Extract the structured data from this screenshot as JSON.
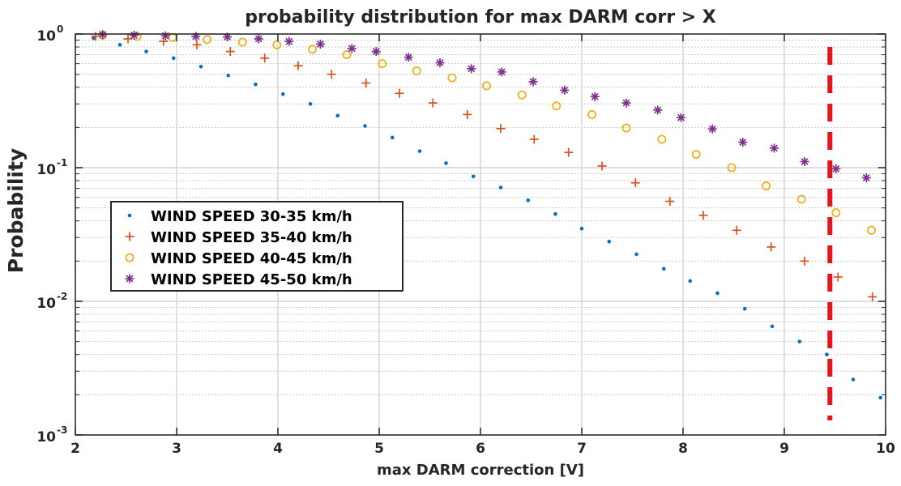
{
  "chart_data": {
    "type": "scatter",
    "title": "probability distribution for max DARM corr > X",
    "xlabel": "max DARM correction [V]",
    "ylabel": "Probability",
    "xlim": [
      2,
      10
    ],
    "ylim": [
      0.001,
      1
    ],
    "yscale": "log",
    "grid": true,
    "legend_position": "middle-left",
    "xticks": [
      "2",
      "3",
      "4",
      "5",
      "6",
      "7",
      "8",
      "9",
      "10"
    ],
    "yticks": [
      {
        "base": "10",
        "exp": "-3",
        "value": 0.001
      },
      {
        "base": "10",
        "exp": "-2",
        "value": 0.01
      },
      {
        "base": "10",
        "exp": "-1",
        "value": 0.1
      },
      {
        "base": "10",
        "exp": "0",
        "value": 1
      }
    ],
    "threshold_line": {
      "x": 9.45,
      "color": "#e8141b",
      "style": "dashed"
    },
    "series": [
      {
        "name": "WIND SPEED 30-35 km/h",
        "marker": "dot",
        "color": "#0072bd",
        "x": [
          2.18,
          2.44,
          2.7,
          2.97,
          3.24,
          3.51,
          3.78,
          4.05,
          4.32,
          4.59,
          4.86,
          5.13,
          5.4,
          5.66,
          5.93,
          6.2,
          6.47,
          6.74,
          7.0,
          7.27,
          7.54,
          7.81,
          8.07,
          8.34,
          8.61,
          8.88,
          9.15,
          9.42,
          9.68,
          9.95
        ],
        "y": [
          0.93,
          0.83,
          0.74,
          0.66,
          0.57,
          0.49,
          0.42,
          0.355,
          0.3,
          0.245,
          0.205,
          0.168,
          0.133,
          0.108,
          0.086,
          0.071,
          0.057,
          0.045,
          0.035,
          0.028,
          0.0225,
          0.0175,
          0.0142,
          0.0115,
          0.0088,
          0.0065,
          0.005,
          0.004,
          0.0026,
          0.0019
        ]
      },
      {
        "name": "WIND SPEED 35-40 km/h",
        "marker": "plus",
        "color": "#d95319",
        "x": [
          2.2,
          2.52,
          2.87,
          3.2,
          3.53,
          3.87,
          4.2,
          4.53,
          4.87,
          5.2,
          5.53,
          5.87,
          6.2,
          6.53,
          6.87,
          7.2,
          7.53,
          7.87,
          8.2,
          8.53,
          8.87,
          9.2,
          9.53,
          9.87
        ],
        "y": [
          0.96,
          0.92,
          0.88,
          0.83,
          0.74,
          0.66,
          0.58,
          0.5,
          0.43,
          0.36,
          0.305,
          0.25,
          0.196,
          0.163,
          0.13,
          0.103,
          0.077,
          0.056,
          0.044,
          0.034,
          0.0255,
          0.02,
          0.0152,
          0.0108
        ]
      },
      {
        "name": "WIND SPEED 40-45 km/h",
        "marker": "circle",
        "color": "#edb120",
        "x": [
          2.27,
          2.61,
          2.96,
          3.3,
          3.65,
          3.99,
          4.34,
          4.68,
          5.03,
          5.37,
          5.72,
          6.06,
          6.41,
          6.75,
          7.1,
          7.44,
          7.79,
          8.13,
          8.48,
          8.82,
          9.17,
          9.51,
          9.86
        ],
        "y": [
          0.98,
          0.96,
          0.94,
          0.91,
          0.87,
          0.83,
          0.77,
          0.7,
          0.6,
          0.53,
          0.47,
          0.41,
          0.35,
          0.29,
          0.25,
          0.198,
          0.163,
          0.126,
          0.1,
          0.073,
          0.058,
          0.046,
          0.034
        ]
      },
      {
        "name": "WIND SPEED 45-50 km/h",
        "marker": "star",
        "color": "#7e2f8e",
        "x": [
          2.27,
          2.58,
          2.89,
          3.19,
          3.5,
          3.81,
          4.11,
          4.42,
          4.73,
          4.97,
          5.29,
          5.6,
          5.91,
          6.21,
          6.52,
          6.83,
          7.13,
          7.44,
          7.75,
          7.98,
          8.29,
          8.59,
          8.9,
          9.2,
          9.51,
          9.81
        ],
        "y": [
          0.99,
          0.98,
          0.97,
          0.96,
          0.95,
          0.92,
          0.88,
          0.84,
          0.78,
          0.74,
          0.67,
          0.61,
          0.55,
          0.52,
          0.44,
          0.38,
          0.34,
          0.305,
          0.27,
          0.237,
          0.195,
          0.155,
          0.14,
          0.111,
          0.098,
          0.084
        ]
      }
    ]
  }
}
